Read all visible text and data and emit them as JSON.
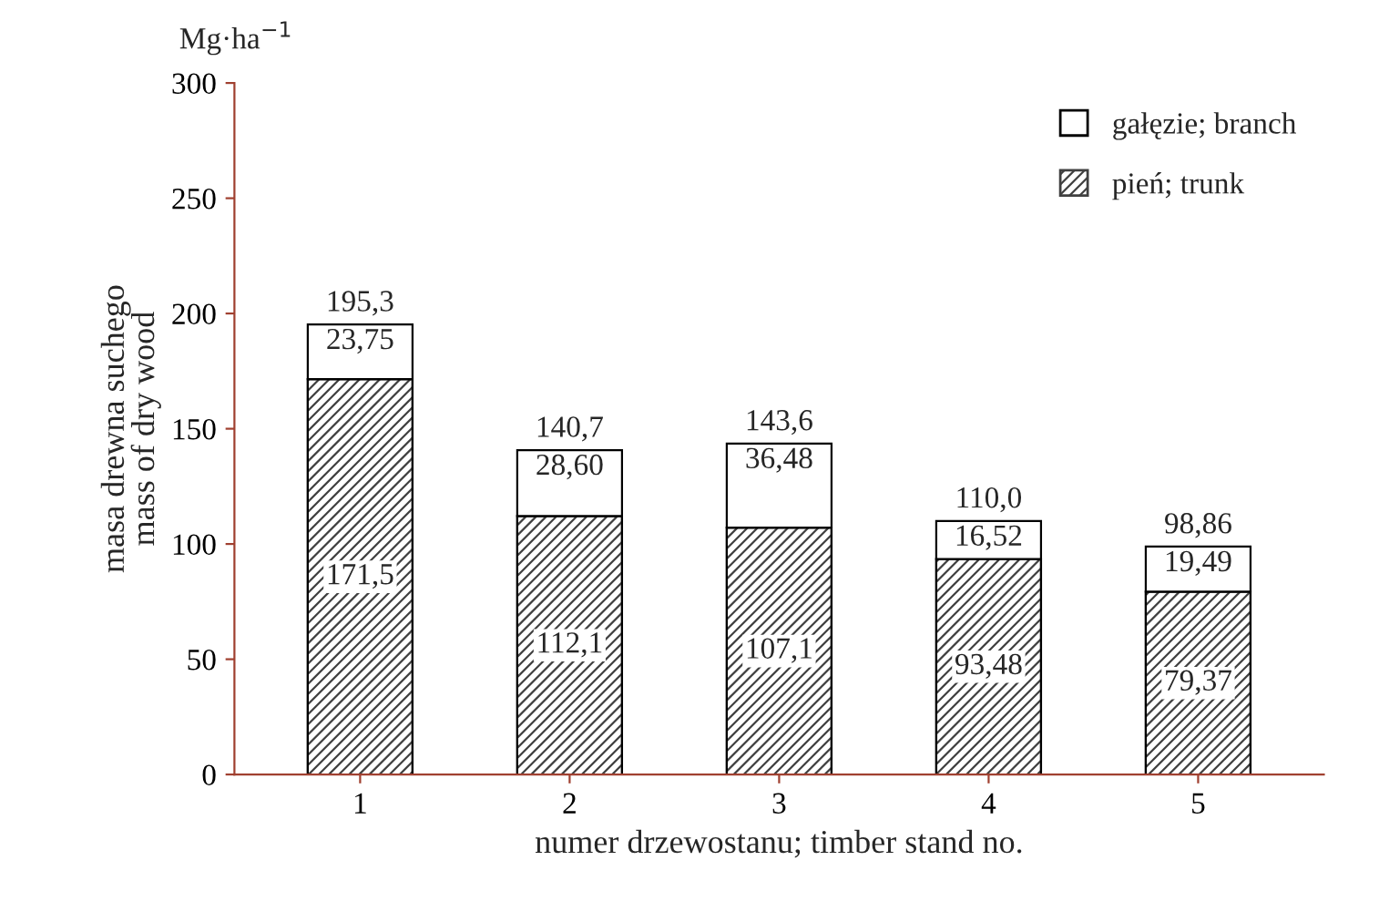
{
  "chart_data": {
    "type": "bar",
    "stacked": true,
    "xlabel": "numer drzewostanu; timber stand no.",
    "ylabel": "masa drewna suchego\nmass of dry wood",
    "annotations": [
      "Mg·ha$^{−1}$"
    ],
    "categories": [
      "1",
      "2",
      "3",
      "4",
      "5"
    ],
    "series": [
      {
        "name": "pień; trunk",
        "color": "#404040",
        "values": [
          171.5,
          112.1,
          107.1,
          93.48,
          79.37
        ],
        "value_labels": [
          "171,5",
          "112,1",
          "107,1",
          "93,48",
          "79,37"
        ]
      },
      {
        "name": "gałęzie; branch",
        "color": "#ffffff",
        "values": [
          23.75,
          28.6,
          36.48,
          16.52,
          19.49
        ],
        "value_labels": [
          "23,75",
          "28,60",
          "36,48",
          "16,52",
          "19,49"
        ]
      }
    ],
    "totals": [
      "195,3",
      "140,7",
      "143,6",
      "110,0",
      "98,86"
    ],
    "ylim": [
      0,
      300
    ],
    "yticks": [
      0,
      50,
      100,
      150,
      200,
      250,
      300
    ],
    "grid": false,
    "legend": "top right"
  }
}
